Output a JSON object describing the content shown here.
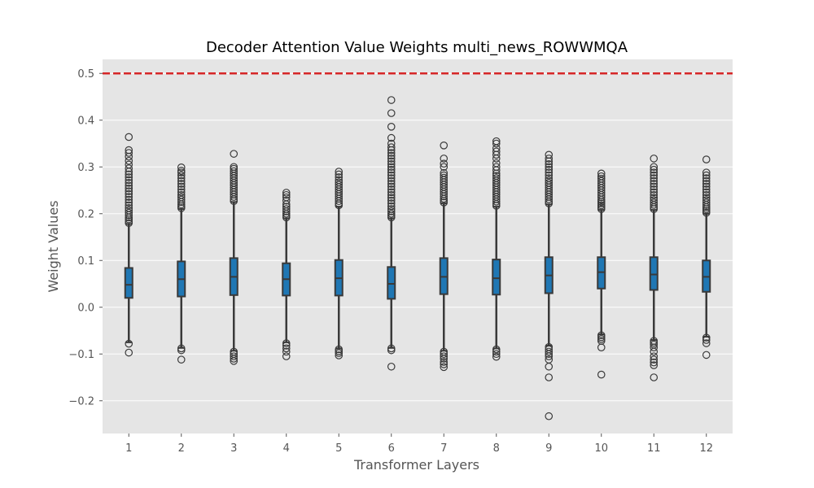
{
  "chart_data": {
    "type": "box",
    "title": "Decoder Attention Value Weights multi_news_ROWWMQA",
    "xlabel": "Transformer Layers",
    "ylabel": "Weight Values",
    "ylim": [
      -0.27,
      0.53
    ],
    "yticks": [
      -0.2,
      -0.1,
      0.0,
      0.1,
      0.2,
      0.3,
      0.4,
      0.5
    ],
    "ytick_labels": [
      "−0.2",
      "−0.1",
      "0.0",
      "0.1",
      "0.2",
      "0.3",
      "0.4",
      "0.5"
    ],
    "grid": true,
    "threshold": {
      "value": 0.5,
      "style": "dashed",
      "color": "#d62728"
    },
    "box_color": "#1f77b4",
    "background": "#e5e5e5",
    "categories": [
      "1",
      "2",
      "3",
      "4",
      "5",
      "6",
      "7",
      "8",
      "9",
      "10",
      "11",
      "12"
    ],
    "boxes": [
      {
        "q1": 0.02,
        "median": 0.048,
        "q3": 0.084,
        "whisker_low": -0.075,
        "whisker_high": 0.178,
        "outliers_high": [
          0.18,
          0.184,
          0.188,
          0.192,
          0.197,
          0.202,
          0.207,
          0.212,
          0.218,
          0.224,
          0.23,
          0.236,
          0.242,
          0.248,
          0.254,
          0.26,
          0.266,
          0.272,
          0.278,
          0.284,
          0.29,
          0.297,
          0.305,
          0.313,
          0.322,
          0.33,
          0.336,
          0.364
        ],
        "outliers_low": [
          -0.078,
          -0.097
        ]
      },
      {
        "q1": 0.023,
        "median": 0.06,
        "q3": 0.098,
        "whisker_low": -0.087,
        "whisker_high": 0.21,
        "outliers_high": [
          0.212,
          0.216,
          0.22,
          0.225,
          0.23,
          0.235,
          0.24,
          0.246,
          0.252,
          0.258,
          0.264,
          0.27,
          0.276,
          0.282,
          0.288,
          0.292,
          0.299
        ],
        "outliers_low": [
          -0.088,
          -0.092,
          -0.112
        ]
      },
      {
        "q1": 0.026,
        "median": 0.065,
        "q3": 0.105,
        "whisker_low": -0.093,
        "whisker_high": 0.225,
        "outliers_high": [
          0.227,
          0.231,
          0.236,
          0.241,
          0.246,
          0.251,
          0.256,
          0.261,
          0.266,
          0.271,
          0.276,
          0.281,
          0.286,
          0.291,
          0.296,
          0.3,
          0.328
        ],
        "outliers_low": [
          -0.095,
          -0.1,
          -0.105,
          -0.11,
          -0.115
        ]
      },
      {
        "q1": 0.025,
        "median": 0.06,
        "q3": 0.094,
        "whisker_low": -0.075,
        "whisker_high": 0.19,
        "outliers_high": [
          0.192,
          0.196,
          0.2,
          0.205,
          0.21,
          0.215,
          0.22,
          0.228,
          0.235,
          0.24,
          0.245
        ],
        "outliers_low": [
          -0.077,
          -0.082,
          -0.088,
          -0.095,
          -0.105
        ]
      },
      {
        "q1": 0.025,
        "median": 0.062,
        "q3": 0.101,
        "whisker_low": -0.088,
        "whisker_high": 0.215,
        "outliers_high": [
          0.218,
          0.222,
          0.227,
          0.232,
          0.237,
          0.242,
          0.247,
          0.252,
          0.257,
          0.262,
          0.267,
          0.272,
          0.278,
          0.284,
          0.29
        ],
        "outliers_low": [
          -0.09,
          -0.094,
          -0.098,
          -0.103
        ]
      },
      {
        "q1": 0.018,
        "median": 0.05,
        "q3": 0.086,
        "whisker_low": -0.087,
        "whisker_high": 0.19,
        "outliers_high": [
          0.192,
          0.196,
          0.2,
          0.205,
          0.21,
          0.216,
          0.222,
          0.228,
          0.234,
          0.24,
          0.246,
          0.252,
          0.258,
          0.264,
          0.27,
          0.276,
          0.282,
          0.288,
          0.294,
          0.3,
          0.306,
          0.312,
          0.318,
          0.324,
          0.33,
          0.336,
          0.342,
          0.35,
          0.362,
          0.386,
          0.415,
          0.443
        ],
        "outliers_low": [
          -0.088,
          -0.092,
          -0.127
        ]
      },
      {
        "q1": 0.028,
        "median": 0.065,
        "q3": 0.105,
        "whisker_low": -0.093,
        "whisker_high": 0.222,
        "outliers_high": [
          0.224,
          0.228,
          0.232,
          0.237,
          0.242,
          0.247,
          0.252,
          0.257,
          0.262,
          0.267,
          0.272,
          0.277,
          0.282,
          0.287,
          0.3,
          0.307,
          0.318,
          0.346
        ],
        "outliers_low": [
          -0.095,
          -0.1,
          -0.105,
          -0.11,
          -0.117,
          -0.122,
          -0.128
        ]
      },
      {
        "q1": 0.027,
        "median": 0.062,
        "q3": 0.102,
        "whisker_low": -0.088,
        "whisker_high": 0.215,
        "outliers_high": [
          0.217,
          0.221,
          0.226,
          0.231,
          0.236,
          0.241,
          0.246,
          0.251,
          0.256,
          0.261,
          0.266,
          0.271,
          0.276,
          0.281,
          0.286,
          0.293,
          0.3,
          0.308,
          0.318,
          0.326,
          0.333,
          0.34,
          0.35,
          0.355
        ],
        "outliers_low": [
          -0.09,
          -0.095,
          -0.1,
          -0.106
        ]
      },
      {
        "q1": 0.03,
        "median": 0.068,
        "q3": 0.107,
        "whisker_low": -0.082,
        "whisker_high": 0.22,
        "outliers_high": [
          0.222,
          0.226,
          0.231,
          0.236,
          0.241,
          0.246,
          0.251,
          0.256,
          0.261,
          0.266,
          0.271,
          0.276,
          0.282,
          0.288,
          0.294,
          0.3,
          0.306,
          0.312,
          0.318,
          0.326
        ],
        "outliers_low": [
          -0.085,
          -0.09,
          -0.095,
          -0.1,
          -0.105,
          -0.112,
          -0.127,
          -0.15,
          -0.233
        ]
      },
      {
        "q1": 0.04,
        "median": 0.075,
        "q3": 0.107,
        "whisker_low": -0.058,
        "whisker_high": 0.208,
        "outliers_high": [
          0.21,
          0.214,
          0.218,
          0.222,
          0.226,
          0.23,
          0.235,
          0.24,
          0.245,
          0.25,
          0.255,
          0.26,
          0.265,
          0.27,
          0.275,
          0.28,
          0.286
        ],
        "outliers_low": [
          -0.06,
          -0.064,
          -0.068,
          -0.072,
          -0.086,
          -0.144
        ]
      },
      {
        "q1": 0.037,
        "median": 0.07,
        "q3": 0.107,
        "whisker_low": -0.07,
        "whisker_high": 0.208,
        "outliers_high": [
          0.21,
          0.214,
          0.219,
          0.224,
          0.229,
          0.234,
          0.24,
          0.246,
          0.252,
          0.258,
          0.264,
          0.27,
          0.276,
          0.282,
          0.288,
          0.294,
          0.3,
          0.318
        ],
        "outliers_low": [
          -0.072,
          -0.076,
          -0.08,
          -0.086,
          -0.095,
          -0.105,
          -0.112,
          -0.118,
          -0.124,
          -0.15
        ]
      },
      {
        "q1": 0.033,
        "median": 0.065,
        "q3": 0.1,
        "whisker_low": -0.063,
        "whisker_high": 0.2,
        "outliers_high": [
          0.202,
          0.206,
          0.21,
          0.214,
          0.219,
          0.224,
          0.229,
          0.234,
          0.24,
          0.246,
          0.252,
          0.258,
          0.264,
          0.27,
          0.276,
          0.282,
          0.288,
          0.316
        ],
        "outliers_low": [
          -0.065,
          -0.07,
          -0.077,
          -0.102
        ]
      }
    ]
  }
}
